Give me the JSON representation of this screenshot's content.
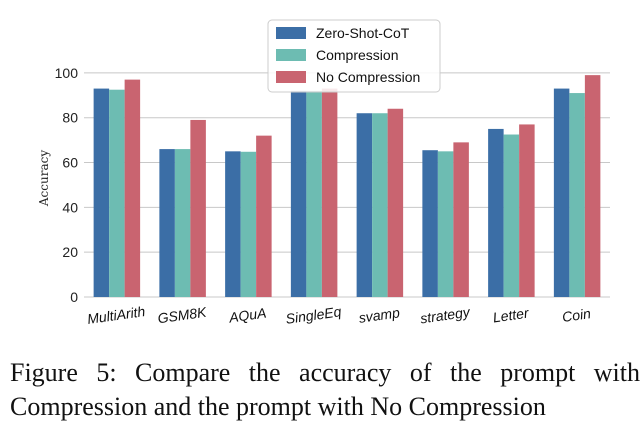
{
  "chart_data": {
    "type": "bar",
    "categories": [
      "MultiArith",
      "GSM8K",
      "AQuA",
      "SingleEq",
      "svamp",
      "strategy",
      "Letter",
      "Coin"
    ],
    "series": [
      {
        "name": "Zero-Shot-CoT",
        "color": "#3b6ea6",
        "values": [
          93,
          66,
          65,
          92,
          82,
          65.5,
          75,
          93
        ]
      },
      {
        "name": "Compression",
        "color": "#6dbcb2",
        "values": [
          92.5,
          66,
          64.8,
          92,
          82,
          65,
          72.5,
          91
        ]
      },
      {
        "name": "No Compression",
        "color": "#c96470",
        "values": [
          97,
          79,
          72,
          93,
          84,
          69,
          77,
          99
        ]
      }
    ],
    "yticks": [
      0,
      20,
      40,
      60,
      80,
      100
    ],
    "ylim": [
      0,
      112
    ],
    "xlabel": "",
    "ylabel": "Accuracy",
    "title": "",
    "legend_position": "top-center",
    "grid": "horizontal"
  },
  "caption": "Figure 5: Compare the accuracy of the prompt with Compression and the prompt with No Compression"
}
